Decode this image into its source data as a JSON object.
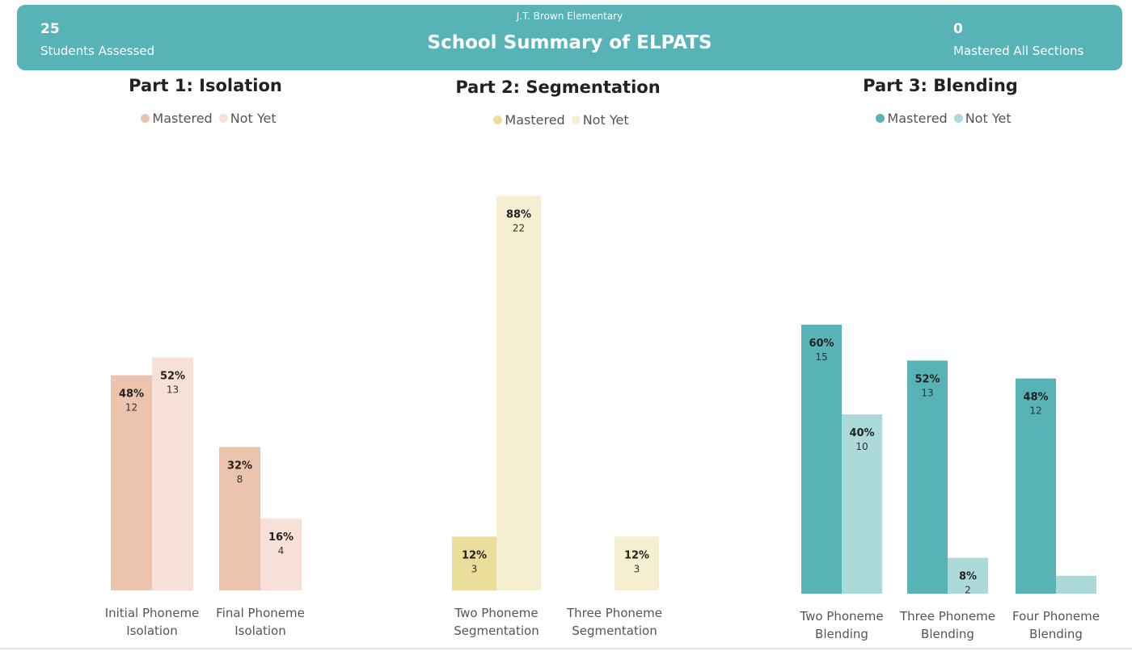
{
  "header": {
    "school": "J.T. Brown Elementary",
    "title": "School Summary of ELPATS",
    "left_kpi": {
      "value": "25",
      "label": "Students Assessed"
    },
    "right_kpi": {
      "value": "0",
      "label": "Mastered All Sections"
    }
  },
  "chart_data": [
    {
      "type": "bar",
      "title": "Part 1: Isolation",
      "legend": [
        "Mastered",
        "Not Yet"
      ],
      "colors": [
        "#ecc4ae",
        "#f6e0d7"
      ],
      "categories": [
        [
          "Initial Phoneme",
          "Isolation"
        ],
        [
          "Final Phoneme",
          "Isolation"
        ]
      ],
      "series": [
        {
          "name": "Mastered",
          "pct": [
            48,
            32
          ],
          "count": [
            12,
            8
          ]
        },
        {
          "name": "Not Yet",
          "pct": [
            52,
            16
          ],
          "count": [
            13,
            4
          ]
        }
      ]
    },
    {
      "type": "bar",
      "title": "Part 2: Segmentation",
      "legend": [
        "Mastered",
        "Not Yet"
      ],
      "colors": [
        "#ebdd9a",
        "#f5eed0"
      ],
      "categories": [
        [
          "Two Phoneme",
          "Segmentation"
        ],
        [
          "Three Phoneme",
          "Segmentation"
        ]
      ],
      "series": [
        {
          "name": "Mastered",
          "pct": [
            12,
            0
          ],
          "count": [
            3,
            0
          ]
        },
        {
          "name": "Not Yet",
          "pct": [
            88,
            12
          ],
          "count": [
            22,
            3
          ]
        }
      ]
    },
    {
      "type": "bar",
      "title": "Part 3: Blending",
      "legend": [
        "Mastered",
        "Not Yet"
      ],
      "colors": [
        "#57b3b5",
        "#acdadb"
      ],
      "categories": [
        [
          "Two Phoneme",
          "Blending"
        ],
        [
          "Three Phoneme",
          "Blending"
        ],
        [
          "Four Phoneme",
          "Blending"
        ]
      ],
      "series": [
        {
          "name": "Mastered",
          "pct": [
            60,
            52,
            48
          ],
          "count": [
            15,
            13,
            12
          ]
        },
        {
          "name": "Not Yet",
          "pct": [
            40,
            8,
            4
          ],
          "count": [
            10,
            2,
            1
          ]
        }
      ]
    }
  ]
}
